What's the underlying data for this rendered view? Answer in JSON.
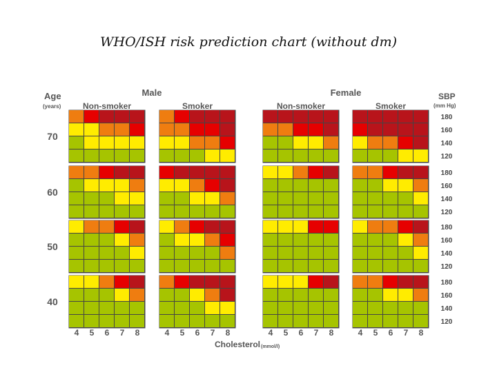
{
  "title": "WHO/ISH risk prediction chart (without dm)",
  "colors": {
    "dark_red": "#b8141b",
    "red": "#e60000",
    "orange": "#ef7d10",
    "yellow": "#ffec00",
    "green": "#a6c400",
    "grid": "#444444",
    "text": "#555555"
  },
  "chart_data": {
    "type": "heatmap",
    "title": "WHO/ISH risk prediction chart (without dm)",
    "age_axis_label": "Age",
    "age_axis_unit": "(years)",
    "sbp_axis_label": "SBP",
    "sbp_axis_unit": "(mm Hg)",
    "cholesterol_label": "Cholesterol",
    "cholesterol_unit": "(mmol/l)",
    "sex_labels": [
      "Male",
      "Female"
    ],
    "smoking_labels": [
      "Non-smoker",
      "Smoker",
      "Non-smoker",
      "Smoker"
    ],
    "age_groups": [
      "70",
      "60",
      "50",
      "40"
    ],
    "sbp_levels": [
      "180",
      "160",
      "140",
      "120"
    ],
    "cholesterol_levels": [
      "4",
      "5",
      "6",
      "7",
      "8"
    ],
    "legend_color_codes": {
      "1": "green",
      "2": "yellow",
      "3": "orange",
      "4": "red",
      "5": "dark_red"
    },
    "risk_grids": [
      [
        [
          [
            3,
            4,
            5,
            5,
            5
          ],
          [
            2,
            2,
            3,
            3,
            4
          ],
          [
            1,
            2,
            2,
            2,
            2
          ],
          [
            1,
            1,
            1,
            1,
            1
          ]
        ],
        [
          [
            3,
            4,
            5,
            5,
            5
          ],
          [
            3,
            3,
            4,
            4,
            5
          ],
          [
            2,
            2,
            3,
            3,
            4
          ],
          [
            1,
            1,
            1,
            2,
            2
          ]
        ],
        [
          [
            5,
            5,
            5,
            5,
            5
          ],
          [
            3,
            3,
            4,
            4,
            5
          ],
          [
            1,
            1,
            2,
            2,
            3
          ],
          [
            1,
            1,
            1,
            1,
            1
          ]
        ],
        [
          [
            5,
            5,
            5,
            5,
            5
          ],
          [
            4,
            5,
            5,
            5,
            5
          ],
          [
            2,
            3,
            3,
            4,
            5
          ],
          [
            1,
            1,
            1,
            2,
            2
          ]
        ]
      ],
      [
        [
          [
            3,
            3,
            4,
            5,
            5
          ],
          [
            1,
            2,
            2,
            2,
            3
          ],
          [
            1,
            1,
            1,
            2,
            2
          ],
          [
            1,
            1,
            1,
            1,
            1
          ]
        ],
        [
          [
            4,
            5,
            5,
            5,
            5
          ],
          [
            2,
            2,
            3,
            4,
            5
          ],
          [
            1,
            1,
            2,
            2,
            3
          ],
          [
            1,
            1,
            1,
            1,
            1
          ]
        ],
        [
          [
            2,
            2,
            3,
            4,
            5
          ],
          [
            1,
            1,
            1,
            1,
            1
          ],
          [
            1,
            1,
            1,
            1,
            1
          ],
          [
            1,
            1,
            1,
            1,
            1
          ]
        ],
        [
          [
            3,
            3,
            4,
            5,
            5
          ],
          [
            1,
            1,
            2,
            2,
            3
          ],
          [
            1,
            1,
            1,
            1,
            2
          ],
          [
            1,
            1,
            1,
            1,
            1
          ]
        ]
      ],
      [
        [
          [
            2,
            3,
            3,
            4,
            5
          ],
          [
            1,
            1,
            1,
            2,
            3
          ],
          [
            1,
            1,
            1,
            1,
            2
          ],
          [
            1,
            1,
            1,
            1,
            1
          ]
        ],
        [
          [
            2,
            3,
            4,
            5,
            5
          ],
          [
            1,
            2,
            2,
            3,
            4
          ],
          [
            1,
            1,
            1,
            1,
            3
          ],
          [
            1,
            1,
            1,
            1,
            1
          ]
        ],
        [
          [
            2,
            2,
            2,
            4,
            4
          ],
          [
            1,
            1,
            1,
            1,
            1
          ],
          [
            1,
            1,
            1,
            1,
            1
          ],
          [
            1,
            1,
            1,
            1,
            1
          ]
        ],
        [
          [
            2,
            3,
            3,
            4,
            5
          ],
          [
            1,
            1,
            1,
            2,
            3
          ],
          [
            1,
            1,
            1,
            1,
            2
          ],
          [
            1,
            1,
            1,
            1,
            1
          ]
        ]
      ],
      [
        [
          [
            2,
            2,
            3,
            4,
            5
          ],
          [
            1,
            1,
            1,
            2,
            3
          ],
          [
            1,
            1,
            1,
            1,
            1
          ],
          [
            1,
            1,
            1,
            1,
            1
          ]
        ],
        [
          [
            3,
            4,
            5,
            5,
            5
          ],
          [
            1,
            1,
            2,
            3,
            5
          ],
          [
            1,
            1,
            1,
            2,
            2
          ],
          [
            1,
            1,
            1,
            1,
            1
          ]
        ],
        [
          [
            2,
            2,
            2,
            4,
            5
          ],
          [
            1,
            1,
            1,
            1,
            1
          ],
          [
            1,
            1,
            1,
            1,
            1
          ],
          [
            1,
            1,
            1,
            1,
            1
          ]
        ],
        [
          [
            3,
            3,
            4,
            5,
            5
          ],
          [
            1,
            1,
            2,
            2,
            3
          ],
          [
            1,
            1,
            1,
            1,
            1
          ],
          [
            1,
            1,
            1,
            1,
            1
          ]
        ]
      ]
    ]
  }
}
